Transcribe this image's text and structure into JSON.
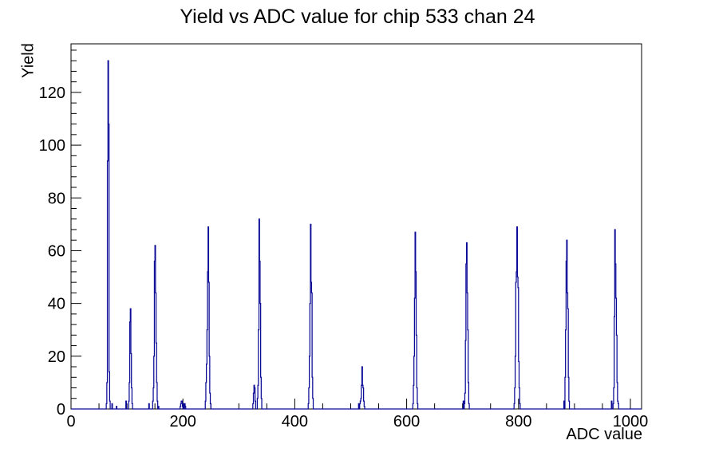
{
  "chart_data": {
    "type": "bar",
    "title": "Yield vs ADC value for chip 533 chan 24",
    "xlabel": "ADC value",
    "ylabel": "Yield",
    "xlim": [
      0,
      1020
    ],
    "ylim": [
      0,
      138.4
    ],
    "x_major_ticks": [
      0,
      200,
      400,
      600,
      800,
      1000
    ],
    "x_minor_step": 50,
    "y_major_ticks": [
      0,
      20,
      40,
      60,
      80,
      100,
      120
    ],
    "y_minor_step": 4,
    "grid": false,
    "legend": "none",
    "line_color": "#0a0a96",
    "frame_color": "#000000",
    "background_color": "#ffffff",
    "bin_width_adc": 1,
    "bins": [
      [
        63,
        2
      ],
      [
        64,
        10
      ],
      [
        65,
        94
      ],
      [
        66,
        132
      ],
      [
        67,
        108
      ],
      [
        68,
        14
      ],
      [
        69,
        3
      ],
      [
        73,
        2
      ],
      [
        81,
        1
      ],
      [
        98,
        3
      ],
      [
        103,
        3
      ],
      [
        104,
        10
      ],
      [
        105,
        33
      ],
      [
        106,
        38
      ],
      [
        107,
        21
      ],
      [
        108,
        8
      ],
      [
        109,
        2
      ],
      [
        139,
        2
      ],
      [
        146,
        3
      ],
      [
        147,
        8
      ],
      [
        148,
        20
      ],
      [
        149,
        56
      ],
      [
        150,
        62
      ],
      [
        151,
        44
      ],
      [
        152,
        25
      ],
      [
        153,
        10
      ],
      [
        154,
        3
      ],
      [
        156,
        1
      ],
      [
        195,
        1
      ],
      [
        196,
        2
      ],
      [
        197,
        3
      ],
      [
        198,
        3
      ],
      [
        199,
        1
      ],
      [
        201,
        2
      ],
      [
        203,
        2
      ],
      [
        204,
        1
      ],
      [
        240,
        3
      ],
      [
        241,
        10
      ],
      [
        242,
        17
      ],
      [
        243,
        30
      ],
      [
        244,
        52
      ],
      [
        245,
        69
      ],
      [
        246,
        48
      ],
      [
        247,
        20
      ],
      [
        248,
        6
      ],
      [
        249,
        2
      ],
      [
        325,
        2
      ],
      [
        326,
        6
      ],
      [
        327,
        9
      ],
      [
        328,
        8
      ],
      [
        329,
        3
      ],
      [
        333,
        4
      ],
      [
        334,
        9
      ],
      [
        335,
        30
      ],
      [
        336,
        72
      ],
      [
        337,
        56
      ],
      [
        338,
        40
      ],
      [
        339,
        12
      ],
      [
        340,
        4
      ],
      [
        424,
        2
      ],
      [
        425,
        8
      ],
      [
        426,
        20
      ],
      [
        427,
        40
      ],
      [
        428,
        70
      ],
      [
        429,
        48
      ],
      [
        430,
        44
      ],
      [
        431,
        12
      ],
      [
        432,
        4
      ],
      [
        514,
        2
      ],
      [
        516,
        2
      ],
      [
        517,
        3
      ],
      [
        518,
        4
      ],
      [
        519,
        9
      ],
      [
        520,
        16
      ],
      [
        521,
        9
      ],
      [
        522,
        8
      ],
      [
        523,
        3
      ],
      [
        524,
        1
      ],
      [
        611,
        2
      ],
      [
        612,
        9
      ],
      [
        613,
        20
      ],
      [
        614,
        42
      ],
      [
        615,
        67
      ],
      [
        616,
        52
      ],
      [
        617,
        28
      ],
      [
        618,
        8
      ],
      [
        619,
        2
      ],
      [
        701,
        3
      ],
      [
        703,
        2
      ],
      [
        704,
        6
      ],
      [
        705,
        26
      ],
      [
        706,
        55
      ],
      [
        707,
        63
      ],
      [
        708,
        44
      ],
      [
        709,
        30
      ],
      [
        710,
        10
      ],
      [
        711,
        2
      ],
      [
        792,
        2
      ],
      [
        793,
        8
      ],
      [
        794,
        20
      ],
      [
        795,
        48
      ],
      [
        796,
        52
      ],
      [
        797,
        69
      ],
      [
        798,
        50
      ],
      [
        799,
        46
      ],
      [
        800,
        18
      ],
      [
        801,
        8
      ],
      [
        802,
        2
      ],
      [
        881,
        3
      ],
      [
        883,
        12
      ],
      [
        884,
        30
      ],
      [
        885,
        56
      ],
      [
        886,
        64
      ],
      [
        887,
        44
      ],
      [
        888,
        38
      ],
      [
        889,
        12
      ],
      [
        890,
        3
      ],
      [
        966,
        3
      ],
      [
        969,
        2
      ],
      [
        970,
        8
      ],
      [
        971,
        35
      ],
      [
        972,
        68
      ],
      [
        973,
        55
      ],
      [
        974,
        42
      ],
      [
        975,
        28
      ],
      [
        976,
        10
      ],
      [
        977,
        3
      ],
      [
        978,
        2
      ]
    ]
  }
}
